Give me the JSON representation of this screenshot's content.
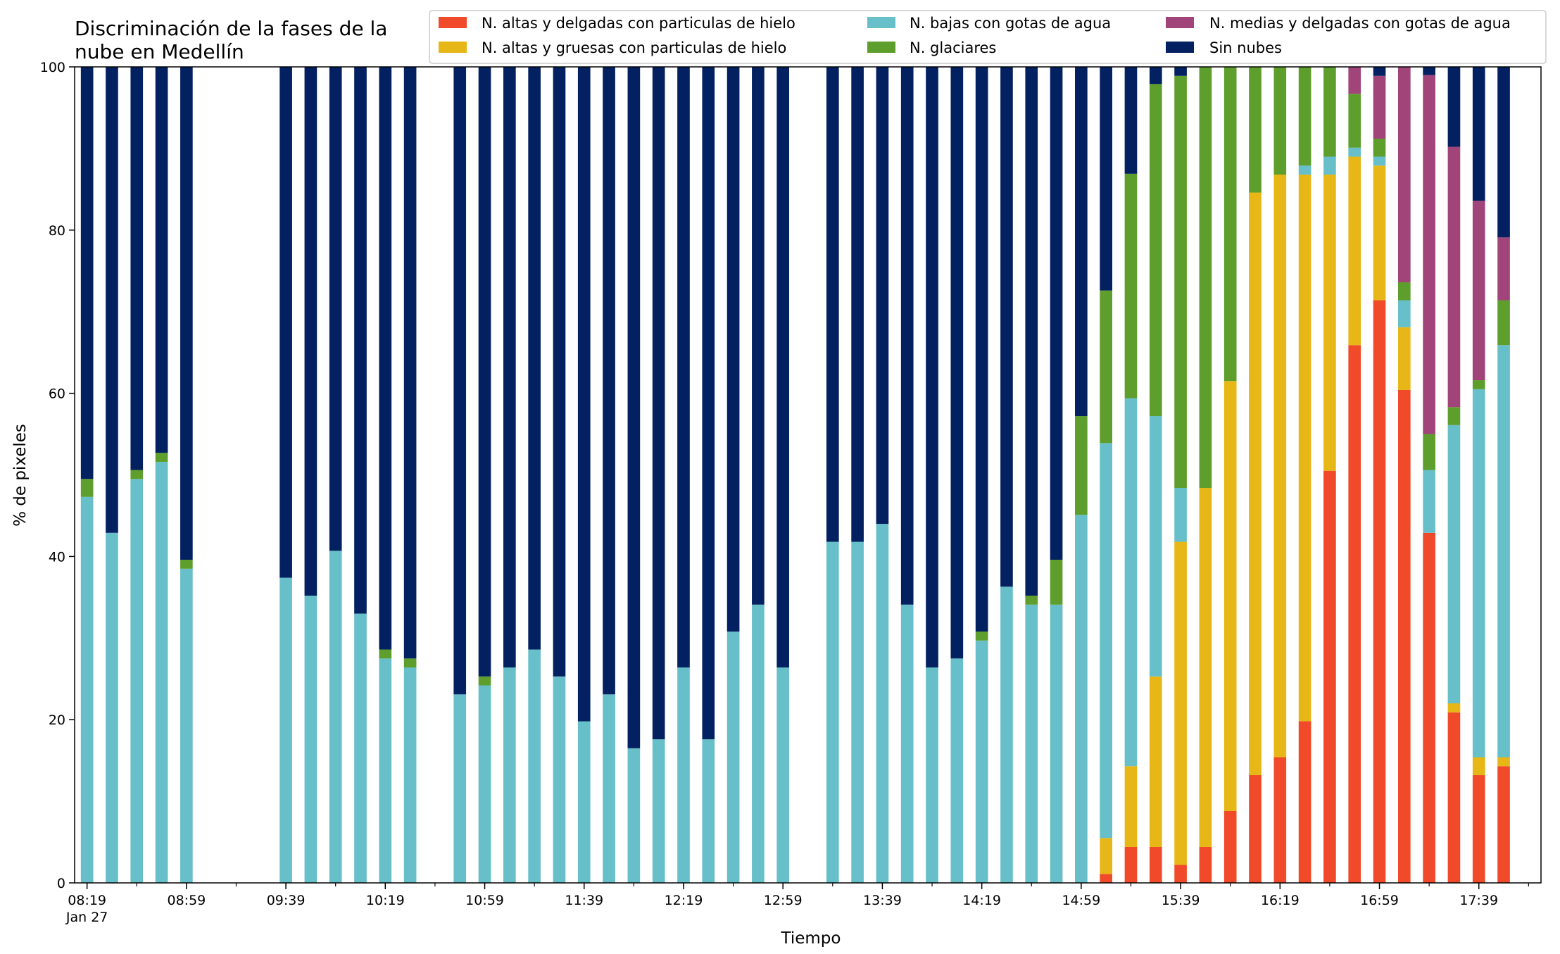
{
  "chart_data": {
    "type": "bar",
    "stacked": true,
    "title_lines": [
      "Discriminación de la fases de la",
      "nube en Medellín"
    ],
    "xlabel": "Tiempo",
    "ylabel": "% de pixeles",
    "ylim": [
      0,
      100
    ],
    "yticks": [
      "0",
      "20",
      "40",
      "60",
      "80",
      "100"
    ],
    "x_start": "08:19",
    "x_end": "17:59",
    "slot_minutes": 10,
    "xticks": [
      {
        "time": "08:19",
        "label": "08:19",
        "sub": "Jan 27"
      },
      {
        "time": "08:59",
        "label": "08:59"
      },
      {
        "time": "09:39",
        "label": "09:39"
      },
      {
        "time": "10:19",
        "label": "10:19"
      },
      {
        "time": "10:59",
        "label": "10:59"
      },
      {
        "time": "11:39",
        "label": "11:39"
      },
      {
        "time": "12:19",
        "label": "12:19"
      },
      {
        "time": "12:59",
        "label": "12:59"
      },
      {
        "time": "13:39",
        "label": "13:39"
      },
      {
        "time": "14:19",
        "label": "14:19"
      },
      {
        "time": "14:59",
        "label": "14:59"
      },
      {
        "time": "15:39",
        "label": "15:39"
      },
      {
        "time": "16:19",
        "label": "16:19"
      },
      {
        "time": "16:59",
        "label": "16:59"
      },
      {
        "time": "17:39",
        "label": "17:39"
      }
    ],
    "legend": {
      "position": "top-right",
      "columns": [
        [
          "N. altas y delgadas con particulas de hielo",
          "N. altas y gruesas con particulas de hielo"
        ],
        [
          "N. bajas con gotas de agua",
          "N. glaciares"
        ],
        [
          "N. medias y delgadas con gotas de agua",
          "Sin nubes"
        ]
      ]
    },
    "series": [
      {
        "name": "N. altas y delgadas con particulas de hielo",
        "color": "#f04a2a"
      },
      {
        "name": "N. altas y gruesas con particulas de hielo",
        "color": "#e6b716"
      },
      {
        "name": "N. bajas con gotas de agua",
        "color": "#67bfc9"
      },
      {
        "name": "N. glaciares",
        "color": "#5e9e2c"
      },
      {
        "name": "N. medias y delgadas con gotas de agua",
        "color": "#a14479"
      },
      {
        "name": "Sin nubes",
        "color": "#032060"
      }
    ],
    "bars": [
      {
        "time": "08:19",
        "values": [
          0,
          0,
          47.3,
          2.2,
          0,
          50.5
        ]
      },
      {
        "time": "08:29",
        "values": [
          0,
          0,
          42.9,
          0,
          0,
          57.1
        ]
      },
      {
        "time": "08:39",
        "values": [
          0,
          0,
          49.5,
          1.1,
          0,
          49.4
        ]
      },
      {
        "time": "08:49",
        "values": [
          0,
          0,
          51.6,
          1.1,
          0,
          47.3
        ]
      },
      {
        "time": "08:59",
        "values": [
          0,
          0,
          38.5,
          1.1,
          0,
          60.4
        ]
      },
      {
        "time": "09:39",
        "values": [
          0,
          0,
          37.4,
          0,
          0,
          62.6
        ]
      },
      {
        "time": "09:49",
        "values": [
          0,
          0,
          35.2,
          0,
          0,
          64.8
        ]
      },
      {
        "time": "09:59",
        "values": [
          0,
          0,
          40.7,
          0,
          0,
          59.3
        ]
      },
      {
        "time": "10:09",
        "values": [
          0,
          0,
          33.0,
          0,
          0,
          67.0
        ]
      },
      {
        "time": "10:19",
        "values": [
          0,
          0,
          27.5,
          1.1,
          0,
          71.4
        ]
      },
      {
        "time": "10:29",
        "values": [
          0,
          0,
          26.4,
          1.1,
          0,
          72.5
        ]
      },
      {
        "time": "10:49",
        "values": [
          0,
          0,
          23.1,
          0,
          0,
          76.9
        ]
      },
      {
        "time": "10:59",
        "values": [
          0,
          0,
          24.2,
          1.1,
          0,
          74.7
        ]
      },
      {
        "time": "11:09",
        "values": [
          0,
          0,
          26.4,
          0,
          0,
          73.6
        ]
      },
      {
        "time": "11:19",
        "values": [
          0,
          0,
          28.6,
          0,
          0,
          71.4
        ]
      },
      {
        "time": "11:29",
        "values": [
          0,
          0,
          25.3,
          0,
          0,
          74.7
        ]
      },
      {
        "time": "11:39",
        "values": [
          0,
          0,
          19.8,
          0,
          0,
          80.2
        ]
      },
      {
        "time": "11:49",
        "values": [
          0,
          0,
          23.1,
          0,
          0,
          76.9
        ]
      },
      {
        "time": "11:59",
        "values": [
          0,
          0,
          16.5,
          0,
          0,
          83.5
        ]
      },
      {
        "time": "12:09",
        "values": [
          0,
          0,
          17.6,
          0,
          0,
          82.4
        ]
      },
      {
        "time": "12:19",
        "values": [
          0,
          0,
          26.4,
          0,
          0,
          73.6
        ]
      },
      {
        "time": "12:29",
        "values": [
          0,
          0,
          17.6,
          0,
          0,
          82.4
        ]
      },
      {
        "time": "12:39",
        "values": [
          0,
          0,
          30.8,
          0,
          0,
          69.2
        ]
      },
      {
        "time": "12:49",
        "values": [
          0,
          0,
          34.1,
          0,
          0,
          65.9
        ]
      },
      {
        "time": "12:59",
        "values": [
          0,
          0,
          26.4,
          0,
          0,
          73.6
        ]
      },
      {
        "time": "13:19",
        "values": [
          0,
          0,
          41.8,
          0,
          0,
          58.2
        ]
      },
      {
        "time": "13:29",
        "values": [
          0,
          0,
          41.8,
          0,
          0,
          58.2
        ]
      },
      {
        "time": "13:39",
        "values": [
          0,
          0,
          44.0,
          0,
          0,
          56.0
        ]
      },
      {
        "time": "13:49",
        "values": [
          0,
          0,
          34.1,
          0,
          0,
          65.9
        ]
      },
      {
        "time": "13:59",
        "values": [
          0,
          0,
          26.4,
          0,
          0,
          73.6
        ]
      },
      {
        "time": "14:09",
        "values": [
          0,
          0,
          27.5,
          0,
          0,
          72.5
        ]
      },
      {
        "time": "14:19",
        "values": [
          0,
          0,
          29.7,
          1.1,
          0,
          69.2
        ]
      },
      {
        "time": "14:29",
        "values": [
          0,
          0,
          36.3,
          0,
          0,
          63.7
        ]
      },
      {
        "time": "14:39",
        "values": [
          0,
          0,
          34.1,
          1.1,
          0,
          64.8
        ]
      },
      {
        "time": "14:49",
        "values": [
          0,
          0,
          34.1,
          5.5,
          0,
          60.4
        ]
      },
      {
        "time": "14:59",
        "values": [
          0,
          0,
          45.1,
          12.1,
          0,
          42.8
        ]
      },
      {
        "time": "15:09",
        "values": [
          1.1,
          4.4,
          48.4,
          18.7,
          0,
          27.4
        ]
      },
      {
        "time": "15:19",
        "values": [
          4.4,
          9.9,
          45.1,
          27.5,
          0,
          13.1
        ]
      },
      {
        "time": "15:29",
        "values": [
          4.4,
          20.9,
          31.9,
          40.7,
          0,
          2.1
        ]
      },
      {
        "time": "15:39",
        "values": [
          2.2,
          39.6,
          6.6,
          50.5,
          0,
          1.1
        ]
      },
      {
        "time": "15:49",
        "values": [
          4.4,
          44.0,
          0,
          51.6,
          0,
          0
        ]
      },
      {
        "time": "15:59",
        "values": [
          8.8,
          52.7,
          0,
          38.5,
          0,
          0
        ]
      },
      {
        "time": "16:09",
        "values": [
          13.2,
          71.4,
          0,
          15.4,
          0,
          0
        ]
      },
      {
        "time": "16:19",
        "values": [
          15.4,
          71.4,
          0,
          13.2,
          0,
          0
        ]
      },
      {
        "time": "16:29",
        "values": [
          19.8,
          67.0,
          1.1,
          12.1,
          0,
          0
        ]
      },
      {
        "time": "16:39",
        "values": [
          50.5,
          36.3,
          2.2,
          11.0,
          0,
          0
        ]
      },
      {
        "time": "16:49",
        "values": [
          65.9,
          23.1,
          1.1,
          6.6,
          3.3,
          0
        ]
      },
      {
        "time": "16:59",
        "values": [
          71.4,
          16.5,
          1.1,
          2.2,
          7.7,
          1.1
        ]
      },
      {
        "time": "17:09",
        "values": [
          60.4,
          7.7,
          3.3,
          2.2,
          26.4,
          0
        ]
      },
      {
        "time": "17:19",
        "values": [
          42.9,
          0,
          7.7,
          4.4,
          44.0,
          1.0
        ]
      },
      {
        "time": "17:29",
        "values": [
          20.9,
          1.1,
          34.1,
          2.2,
          31.9,
          9.8
        ]
      },
      {
        "time": "17:39",
        "values": [
          13.2,
          2.2,
          45.1,
          1.1,
          22.0,
          16.4
        ]
      },
      {
        "time": "17:49",
        "values": [
          14.3,
          1.1,
          50.5,
          5.5,
          7.7,
          20.9
        ]
      }
    ]
  }
}
